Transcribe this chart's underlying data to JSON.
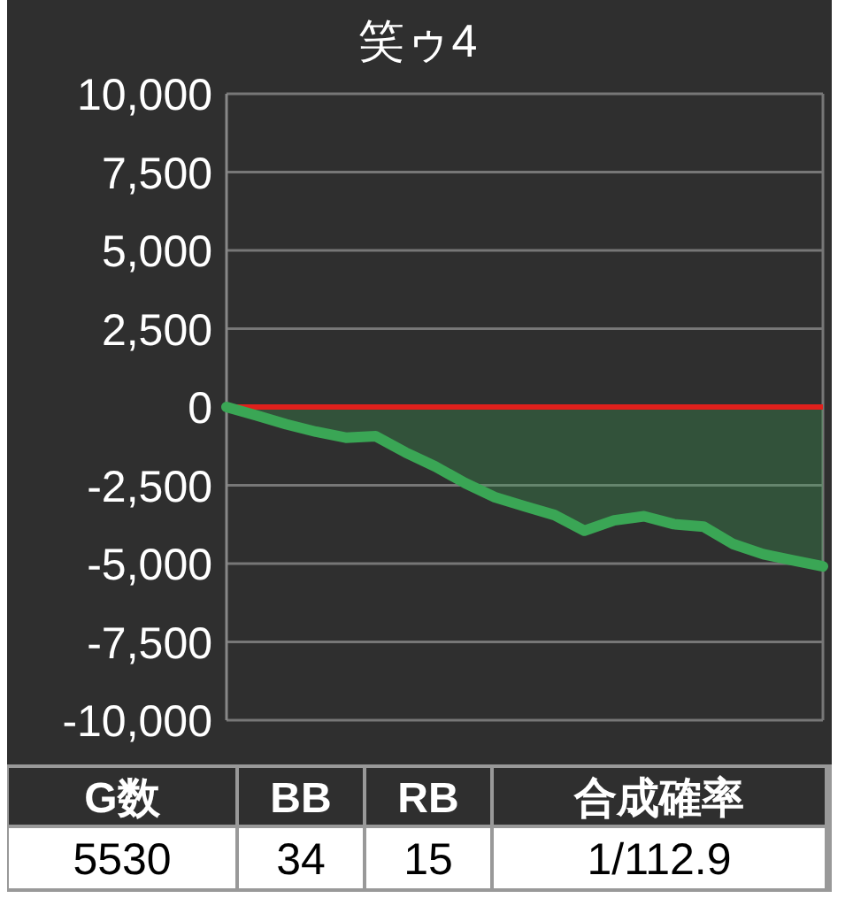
{
  "chart_data": {
    "type": "area",
    "title": "笑ゥ4",
    "categories": [
      null,
      null,
      null,
      null,
      null,
      null,
      null,
      null,
      null,
      null,
      null,
      null,
      null,
      null,
      null,
      null,
      null,
      null,
      null,
      null,
      null
    ],
    "series": [
      {
        "color": "#3aa655",
        "values": [
          0,
          -270,
          -550,
          -790,
          -980,
          -930,
          -1450,
          -1900,
          -2430,
          -2880,
          -3170,
          -3450,
          -3950,
          -3620,
          -3490,
          -3740,
          -3820,
          -4380,
          -4700,
          -4900,
          -5090
        ]
      }
    ],
    "ylim": [
      -10000,
      10000
    ],
    "yticks": [
      {
        "value": 10000,
        "label": "10,000"
      },
      {
        "value": 7500,
        "label": "7,500"
      },
      {
        "value": 5000,
        "label": "5,000"
      },
      {
        "value": 2500,
        "label": "2,500"
      },
      0,
      {
        "value": -2500,
        "label": "-2,500"
      },
      {
        "value": -5000,
        "label": "-5,000"
      },
      {
        "value": -7500,
        "label": "-7,500"
      },
      {
        "value": -10000,
        "label": "-10,000"
      }
    ],
    "grid": "y",
    "ref_lines": [
      {
        "axis": "y",
        "value": 0,
        "color": "#e0201c"
      }
    ],
    "annotations": [
      "G数",
      "BB",
      "RB",
      "合成確率",
      "5530",
      "34",
      "15",
      "1/112.9"
    ]
  }
}
